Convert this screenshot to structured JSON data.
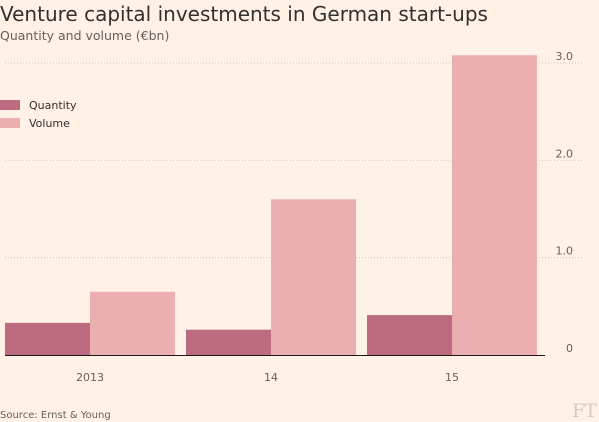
{
  "title": "Venture capital investments in German start-ups",
  "subtitle": "Quantity and volume (€bn)",
  "source": "Source: Ernst & Young",
  "logo_text": "FT",
  "colors": {
    "background": "#fff1e5",
    "quantity": "#bd6b80",
    "volume": "#ecafaf",
    "gridline": "#cfc4bb",
    "axis": "#66605c"
  },
  "chart_data": {
    "type": "bar",
    "title": "Venture capital investments in German start-ups",
    "subtitle": "Quantity and volume (€bn)",
    "categories": [
      "2013",
      "14",
      "15"
    ],
    "series": [
      {
        "name": "Quantity",
        "values": [
          0.33,
          0.26,
          0.41
        ]
      },
      {
        "name": "Volume",
        "values": [
          0.65,
          1.6,
          3.08
        ]
      }
    ],
    "ylim": [
      0,
      3
    ],
    "yticks": [
      "3.0",
      "2.0",
      "1.0",
      "0"
    ],
    "ytick_values": [
      3,
      2,
      1,
      0
    ],
    "y_axis_side": "right",
    "grid": true,
    "legend": "top-left",
    "xlabel": "",
    "ylabel": ""
  }
}
